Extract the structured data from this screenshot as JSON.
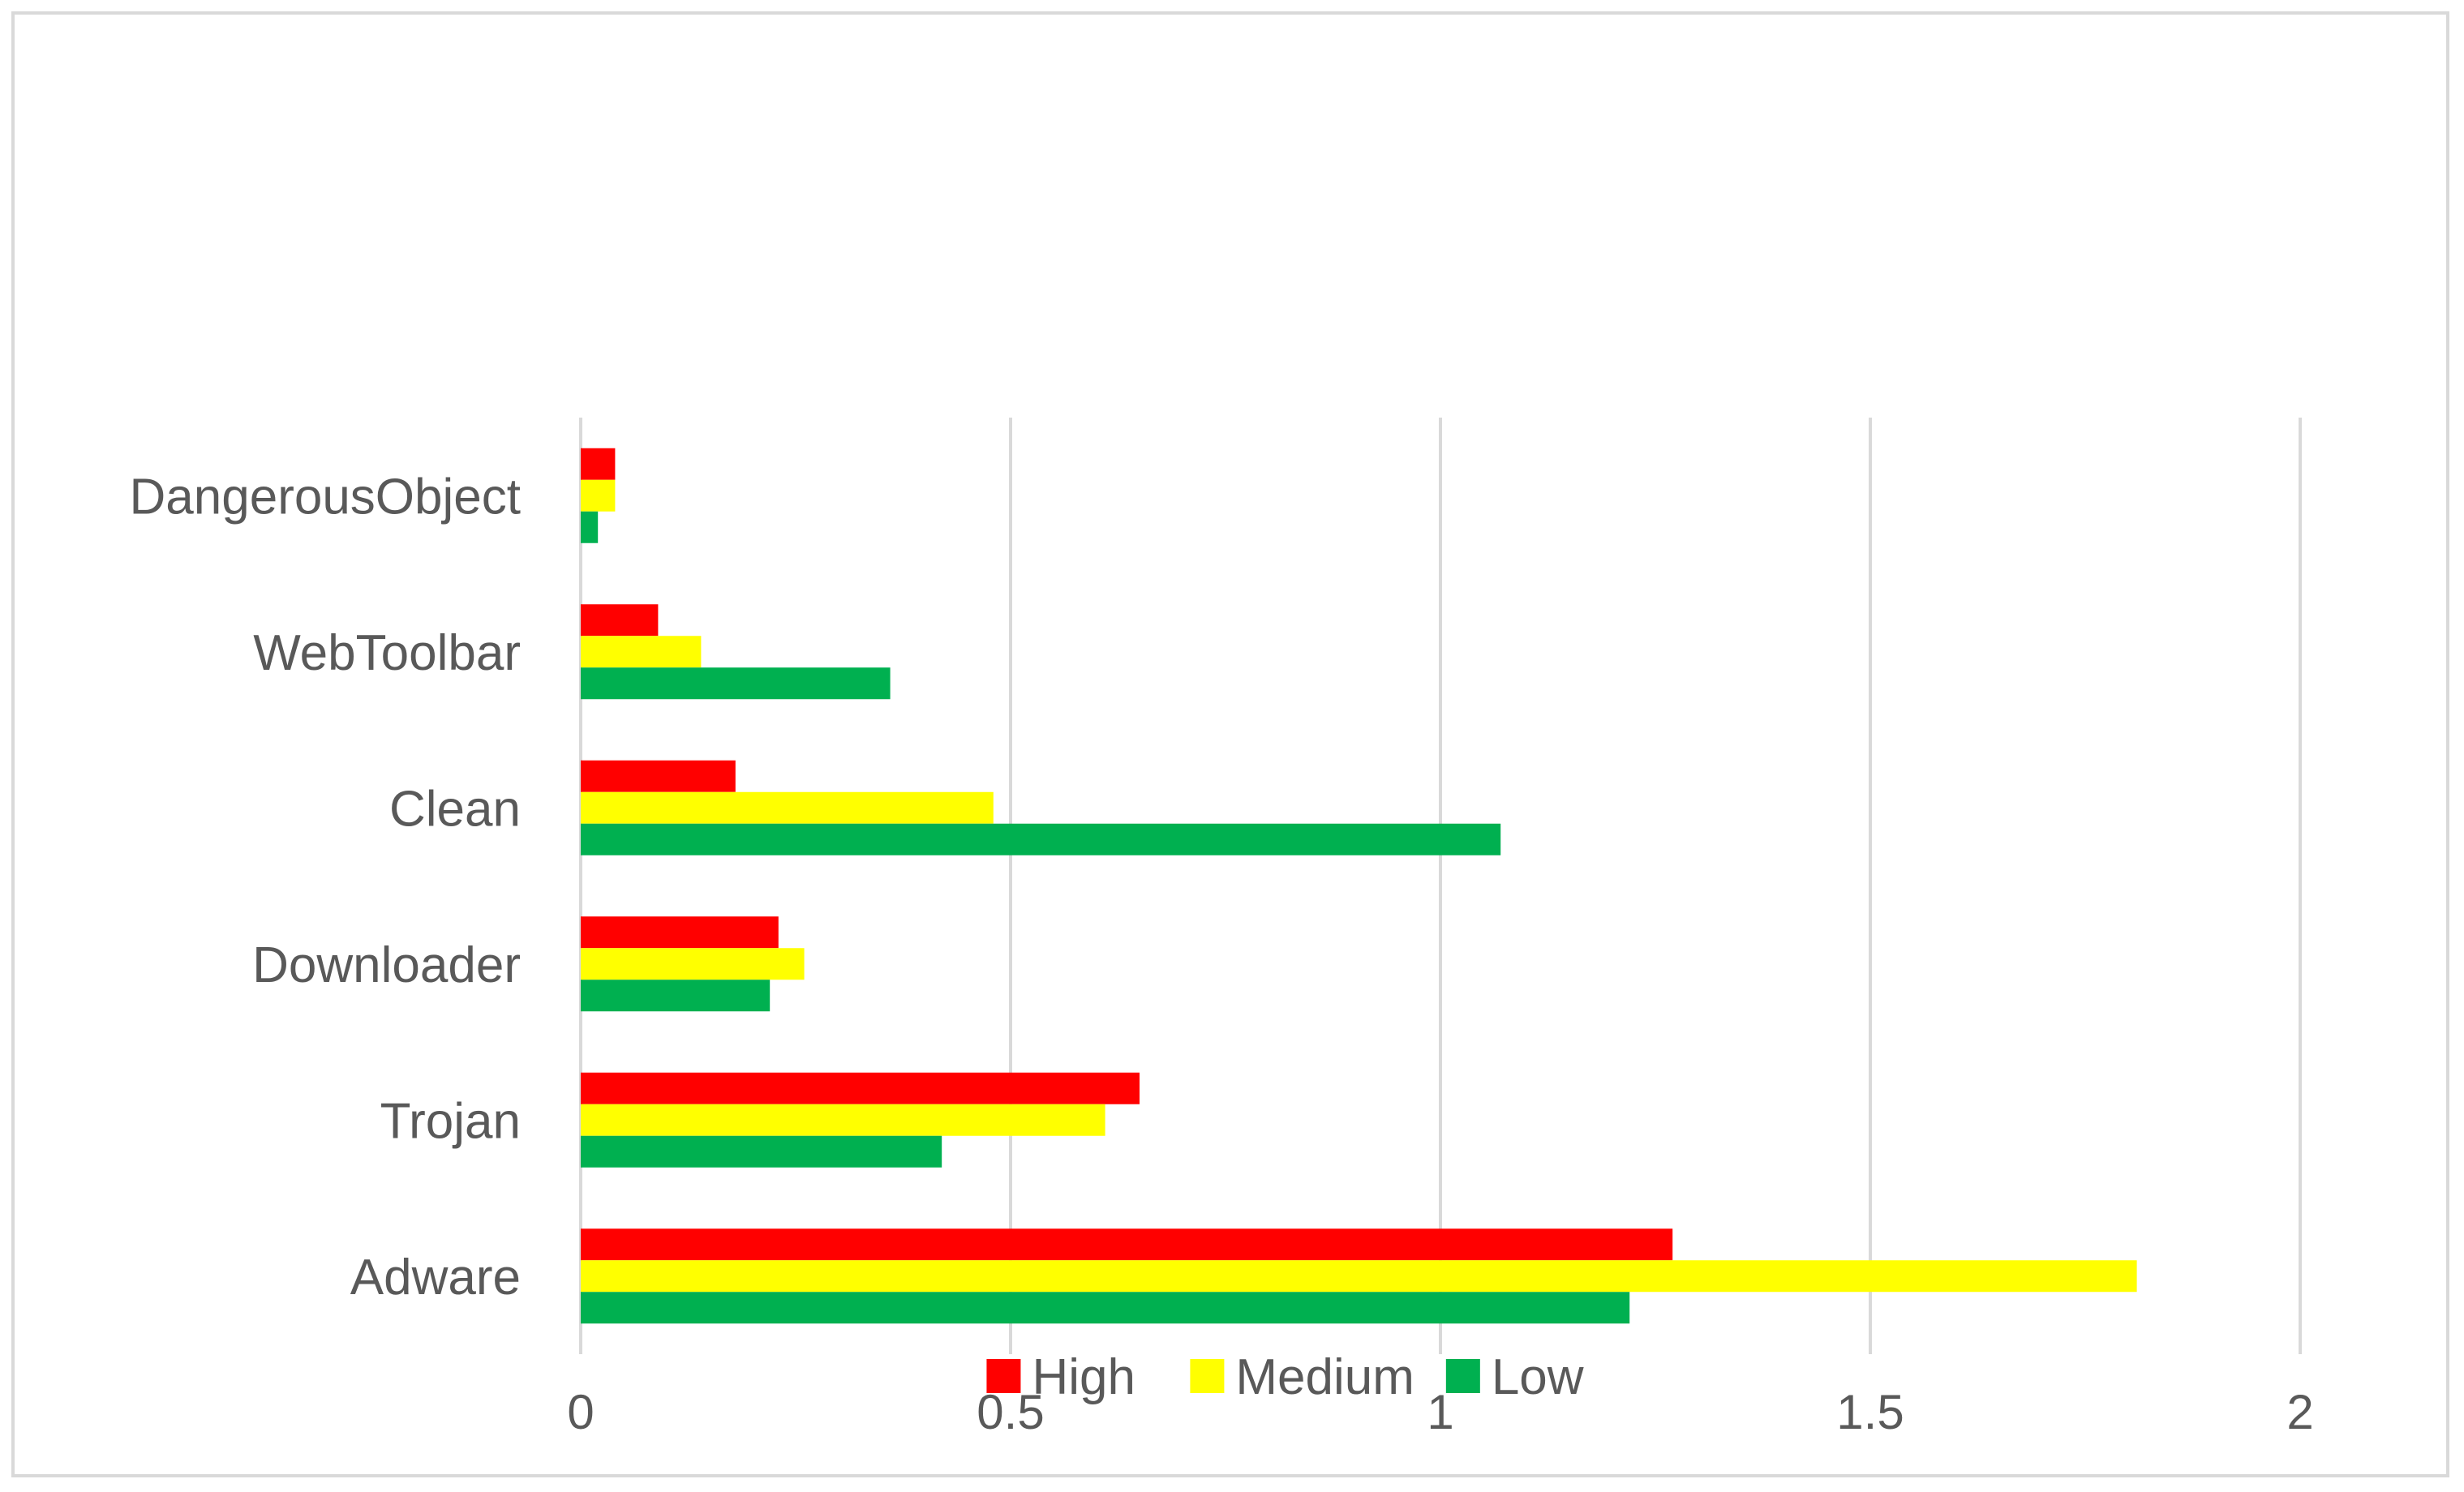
{
  "chart_data": {
    "type": "bar",
    "orientation": "horizontal",
    "title": "",
    "xlabel": "",
    "ylabel": "",
    "categories": [
      "Adware",
      "Trojan",
      "Downloader",
      "Clean",
      "WebToolbar",
      "DangerousObject"
    ],
    "series": [
      {
        "name": "High",
        "color": "#ff0000",
        "values": [
          1.27,
          0.65,
          0.23,
          0.18,
          0.09,
          0.04
        ]
      },
      {
        "name": "Medium",
        "color": "#ffff00",
        "values": [
          1.81,
          0.61,
          0.26,
          0.48,
          0.14,
          0.04
        ]
      },
      {
        "name": "Low",
        "color": "#00b050",
        "values": [
          1.22,
          0.42,
          0.22,
          1.07,
          0.36,
          0.02
        ]
      }
    ],
    "xlim": [
      0,
      2
    ],
    "x_ticks": [
      "0",
      "0.5",
      "1",
      "1.5",
      "2"
    ],
    "grid": true,
    "legend_position": "bottom"
  }
}
